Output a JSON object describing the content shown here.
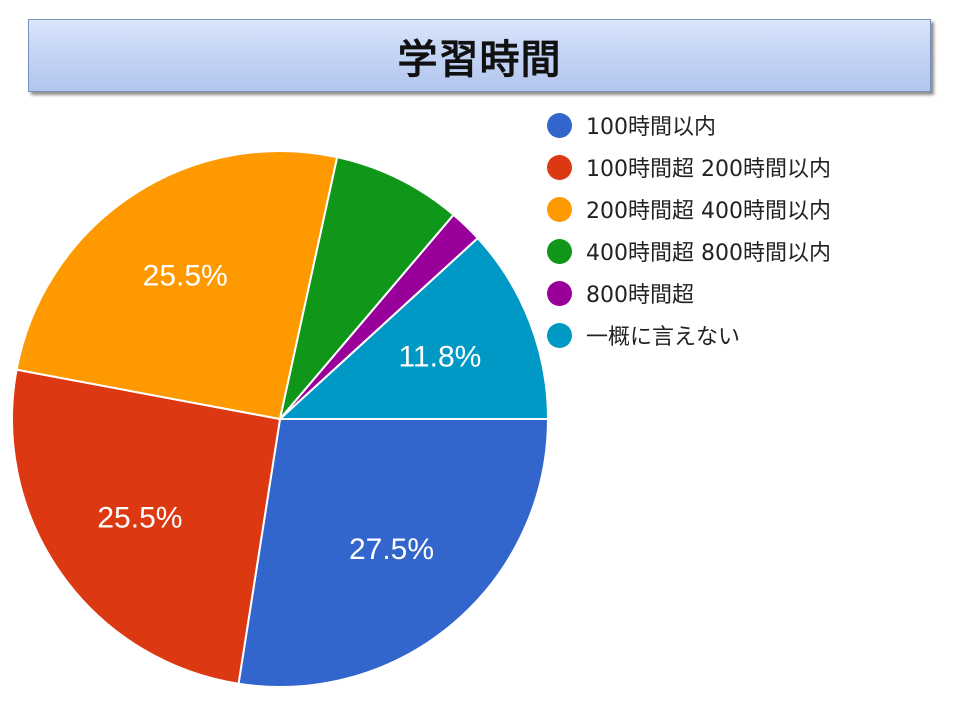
{
  "title": "学習時間",
  "chart_data": {
    "type": "pie",
    "title": "学習時間",
    "legend_position": "right",
    "start": "3 o'clock, clockwise",
    "slices": [
      {
        "label": "100時間以内",
        "value": 27.5,
        "value_label": "27.5%",
        "color": "#3366cc"
      },
      {
        "label": "100時間超 200時間以内",
        "value": 25.5,
        "value_label": "25.5%",
        "color": "#dc3912"
      },
      {
        "label": "200時間超 400時間以内",
        "value": 25.5,
        "value_label": "25.5%",
        "color": "#ff9900"
      },
      {
        "label": "400時間超 800時間以内",
        "value": 7.8,
        "value_label": "",
        "color": "#109618"
      },
      {
        "label": "800時間超",
        "value": 2.0,
        "value_label": "",
        "color": "#990099"
      },
      {
        "label": "一概に言えない",
        "value": 11.8,
        "value_label": "11.8%",
        "color": "#0099c6"
      }
    ]
  }
}
